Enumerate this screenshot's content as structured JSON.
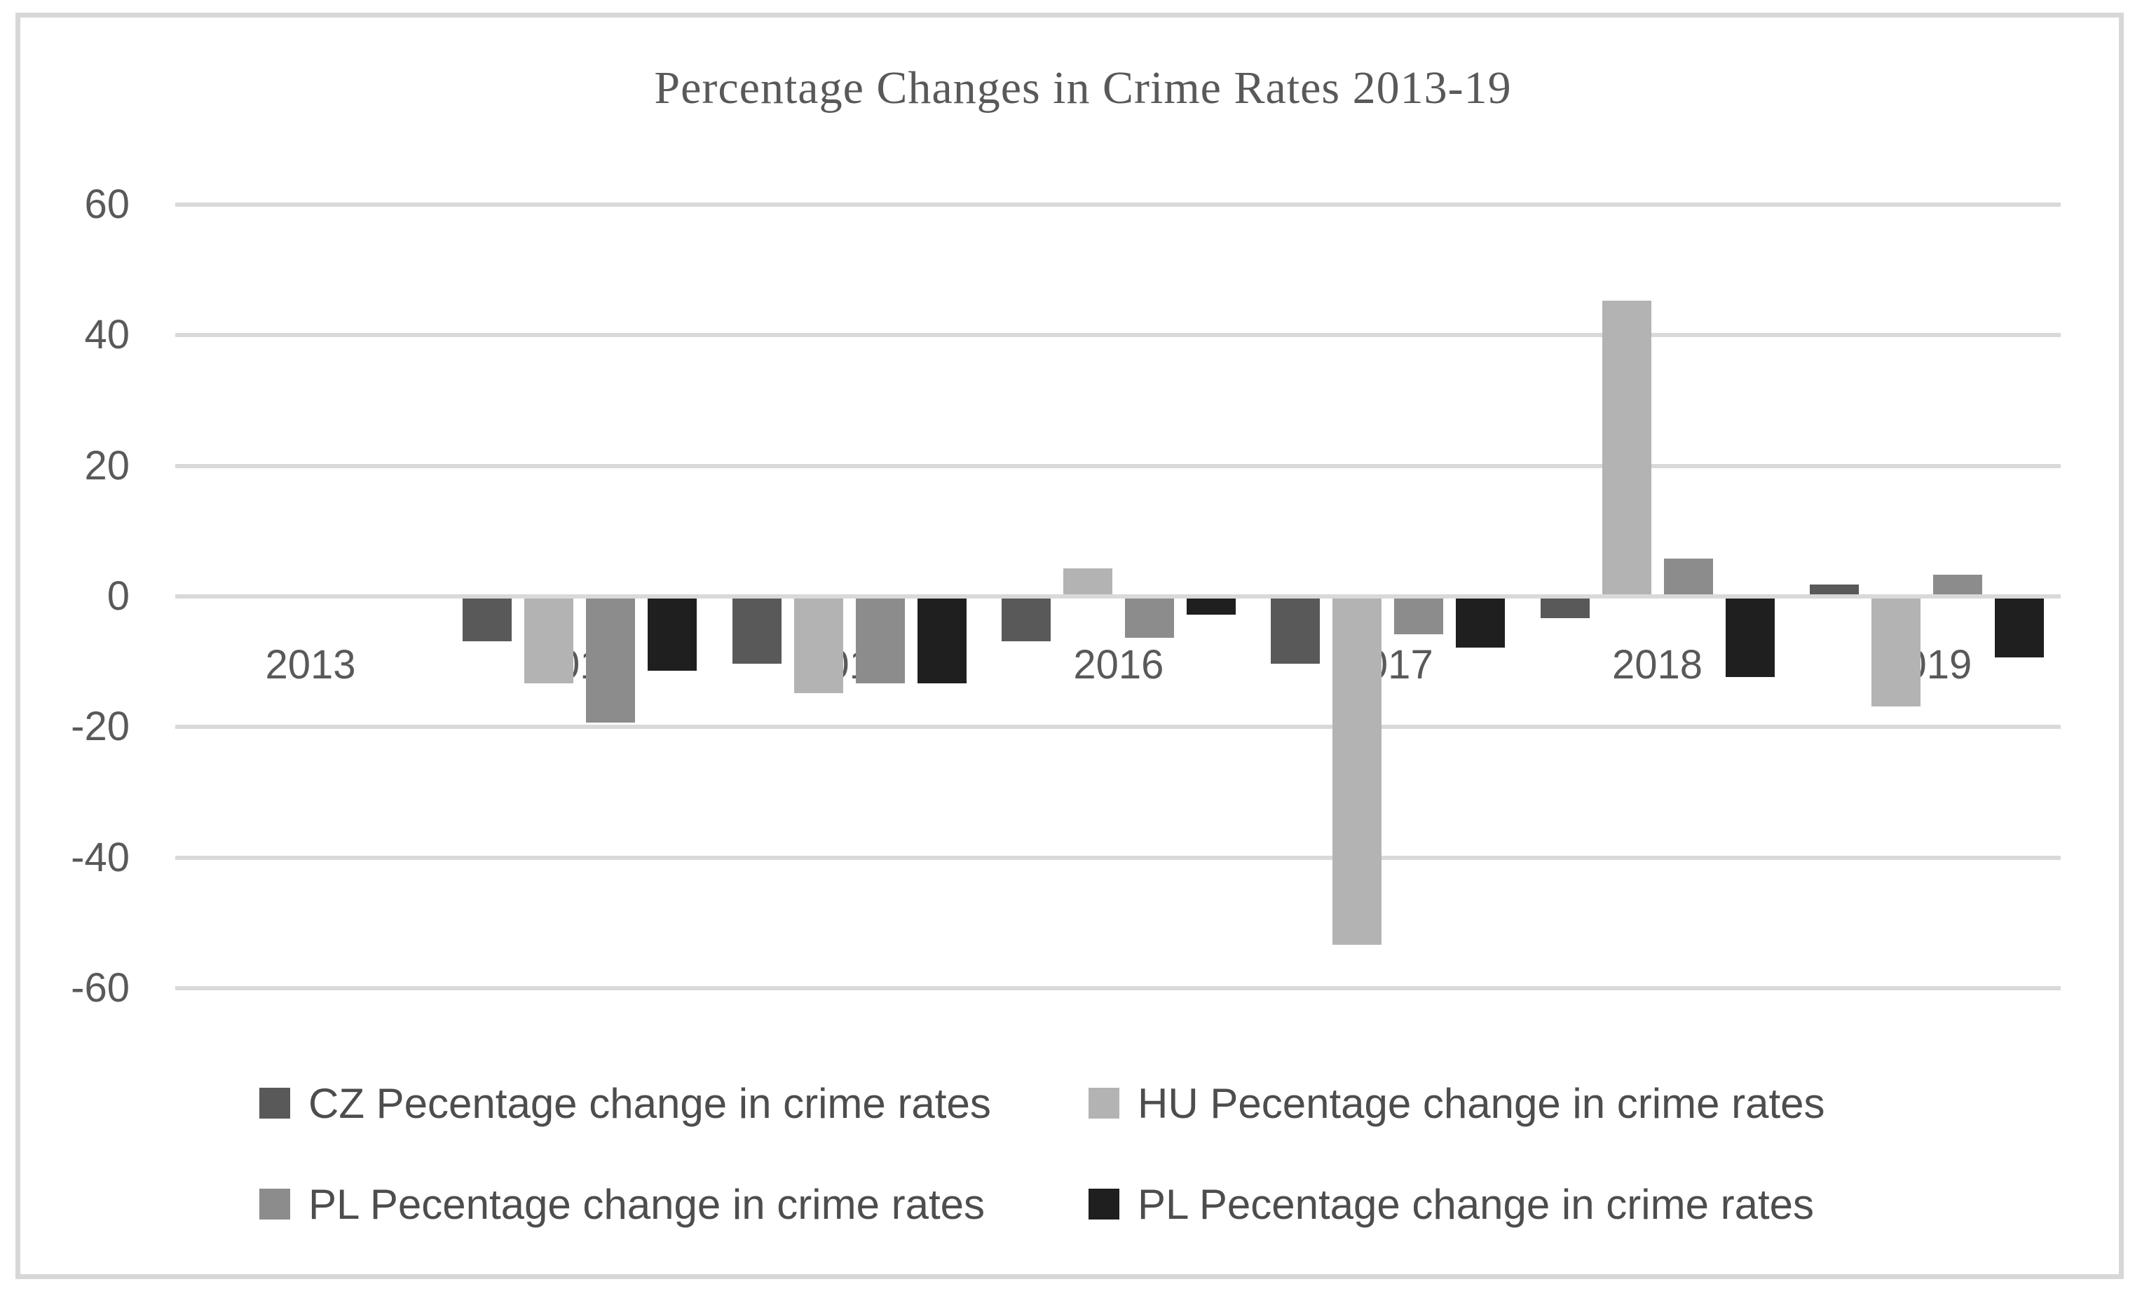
{
  "chart_data": {
    "type": "bar",
    "title": "Percentage Changes in Crime Rates 2013-19",
    "categories": [
      "2013",
      "2014",
      "2015",
      "2016",
      "2017",
      "2018",
      "2019"
    ],
    "series": [
      {
        "key": "cz",
        "name": "CZ Pecentage change in crime rates",
        "color": "#595959",
        "values": [
          null,
          -6.5,
          -10,
          -6.5,
          -10,
          -3,
          1.5
        ]
      },
      {
        "key": "hu",
        "name": "HU Pecentage change in crime rates",
        "color": "#b3b3b3",
        "values": [
          null,
          -13,
          -14.5,
          4,
          -53,
          45,
          -16.5
        ]
      },
      {
        "key": "pl",
        "name": "PL Pecentage change in crime rates",
        "color": "#8c8c8c",
        "values": [
          null,
          -19,
          -13,
          -6,
          -5.5,
          5.5,
          3
        ]
      },
      {
        "key": "pl2",
        "name": "PL Pecentage change in crime rates",
        "color": "#1f1f1f",
        "values": [
          null,
          -11,
          -13,
          -2.5,
          -7.5,
          -12,
          -9
        ]
      }
    ],
    "y_axis": {
      "min": -60,
      "max": 60,
      "step": 20,
      "ticks": [
        60,
        40,
        20,
        0,
        -20,
        -40,
        -60
      ],
      "tick_labels": [
        "60",
        "40",
        "20",
        "0",
        "-20",
        "-40",
        "-60"
      ]
    },
    "grid": true,
    "legend_position": "bottom",
    "legend_rows": [
      [
        0,
        1
      ],
      [
        2,
        3
      ]
    ],
    "colors": {
      "gridline": "#d9d9d9",
      "axis_text": "#595959",
      "legend_text": "#4d4d4d",
      "title_text": "#595959",
      "border": "#d7d7d7"
    }
  }
}
